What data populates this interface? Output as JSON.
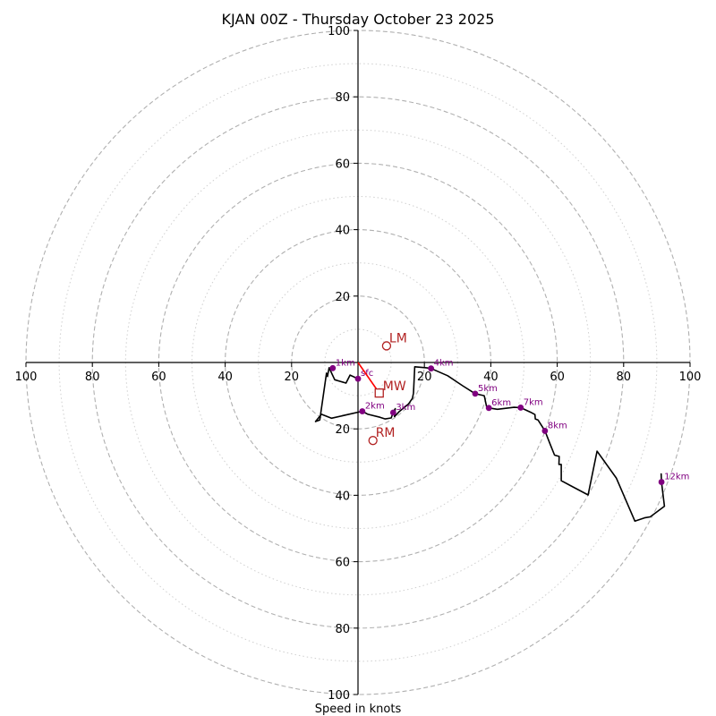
{
  "chart_data": {
    "type": "hodograph",
    "title": "KJAN 00Z - Thursday October 23 2025",
    "xlabel": "Speed in knots",
    "xlim": [
      -100,
      100
    ],
    "ylim": [
      -100,
      100
    ],
    "rings_dashed": [
      20,
      40,
      60,
      80,
      100
    ],
    "rings_dotted": [
      10,
      30,
      50,
      70,
      90
    ],
    "x_ticks": [
      {
        "v": -100,
        "label": "100"
      },
      {
        "v": -80,
        "label": "80"
      },
      {
        "v": -60,
        "label": "60"
      },
      {
        "v": -40,
        "label": "40"
      },
      {
        "v": -20,
        "label": "20"
      },
      {
        "v": 20,
        "label": "20"
      },
      {
        "v": 40,
        "label": "40"
      },
      {
        "v": 60,
        "label": "60"
      },
      {
        "v": 80,
        "label": "80"
      },
      {
        "v": 100,
        "label": "100"
      }
    ],
    "y_ticks": [
      {
        "v": 100,
        "label": "100"
      },
      {
        "v": 80,
        "label": "80"
      },
      {
        "v": 60,
        "label": "60"
      },
      {
        "v": 40,
        "label": "40"
      },
      {
        "v": 20,
        "label": "20"
      },
      {
        "v": -20,
        "label": "20"
      },
      {
        "v": -40,
        "label": "40"
      },
      {
        "v": -60,
        "label": "60"
      },
      {
        "v": -80,
        "label": "80"
      },
      {
        "v": -100,
        "label": "100"
      }
    ],
    "hodograph_line": [
      [
        0.0,
        -4.9
      ],
      [
        -2.4,
        -3.8
      ],
      [
        -3.6,
        -6.2
      ],
      [
        -7.0,
        -5.2
      ],
      [
        -8.7,
        -1.6
      ],
      [
        -9.2,
        -4.2
      ],
      [
        -9.5,
        -3.2
      ],
      [
        -11.5,
        -17.3
      ],
      [
        -12.8,
        -17.8
      ],
      [
        -11.0,
        -15.6
      ],
      [
        -8.0,
        -16.8
      ],
      [
        1.3,
        -14.7
      ],
      [
        3.0,
        -15.6
      ],
      [
        6.6,
        -16.5
      ],
      [
        8.2,
        -17.0
      ],
      [
        10.0,
        -16.7
      ],
      [
        10.6,
        -15.1
      ],
      [
        11.2,
        -13.9
      ],
      [
        11.0,
        -16.3
      ],
      [
        12.3,
        -14.9
      ],
      [
        15.2,
        -12.5
      ],
      [
        16.4,
        -10.8
      ],
      [
        16.7,
        -9.2
      ],
      [
        17.1,
        -1.3
      ],
      [
        20.6,
        -1.6
      ],
      [
        22.0,
        -1.8
      ],
      [
        27.0,
        -4.0
      ],
      [
        31.5,
        -7.0
      ],
      [
        35.3,
        -9.4
      ],
      [
        38.0,
        -10.0
      ],
      [
        38.2,
        -10.8
      ],
      [
        38.7,
        -13.2
      ],
      [
        39.4,
        -13.7
      ],
      [
        42.0,
        -14.1
      ],
      [
        47.0,
        -13.5
      ],
      [
        49.0,
        -13.6
      ],
      [
        52.0,
        -15.0
      ],
      [
        53.3,
        -15.7
      ],
      [
        53.4,
        -17.0
      ],
      [
        54.2,
        -17.3
      ],
      [
        56.3,
        -20.6
      ],
      [
        57.9,
        -24.7
      ],
      [
        59.2,
        -27.9
      ],
      [
        60.6,
        -28.3
      ],
      [
        60.5,
        -30.7
      ],
      [
        61.2,
        -30.7
      ],
      [
        61.2,
        -35.6
      ],
      [
        69.3,
        -39.9
      ],
      [
        72.0,
        -26.7
      ],
      [
        77.8,
        -34.8
      ],
      [
        83.4,
        -47.8
      ],
      [
        86.3,
        -46.8
      ],
      [
        88.0,
        -46.5
      ],
      [
        92.3,
        -43.3
      ],
      [
        91.4,
        -36.0
      ],
      [
        91.3,
        -33.4
      ]
    ],
    "height_markers": [
      {
        "label": "sfc",
        "u": 0.0,
        "v": -4.9
      },
      {
        "label": "1km",
        "u": -7.6,
        "v": -1.7
      },
      {
        "label": "2km",
        "u": 1.3,
        "v": -14.7
      },
      {
        "label": "3km",
        "u": 10.6,
        "v": -15.1
      },
      {
        "label": "4km",
        "u": 22.0,
        "v": -1.8
      },
      {
        "label": "5km",
        "u": 35.3,
        "v": -9.4
      },
      {
        "label": "6km",
        "u": 39.4,
        "v": -13.7
      },
      {
        "label": "7km",
        "u": 49.0,
        "v": -13.6
      },
      {
        "label": "8km",
        "u": 56.3,
        "v": -20.6
      },
      {
        "label": "12km",
        "u": 91.4,
        "v": -36.0
      }
    ],
    "storm_motion": {
      "LM": {
        "label": "LM",
        "u": 8.6,
        "v": 5.0
      },
      "MW": {
        "label": "MW",
        "u": 6.4,
        "v": -9.2
      },
      "RM": {
        "label": "RM",
        "u": 4.5,
        "v": -23.5
      }
    },
    "shear_vector": {
      "from": [
        0.0,
        0.0
      ],
      "to": [
        6.4,
        -9.2
      ]
    },
    "colors": {
      "hodograph": "#000000",
      "markers": "#800080",
      "storm_motion": "#b22222",
      "shear": "#ff0000",
      "grid": "#b0b0b0",
      "axis": "#000000"
    }
  }
}
